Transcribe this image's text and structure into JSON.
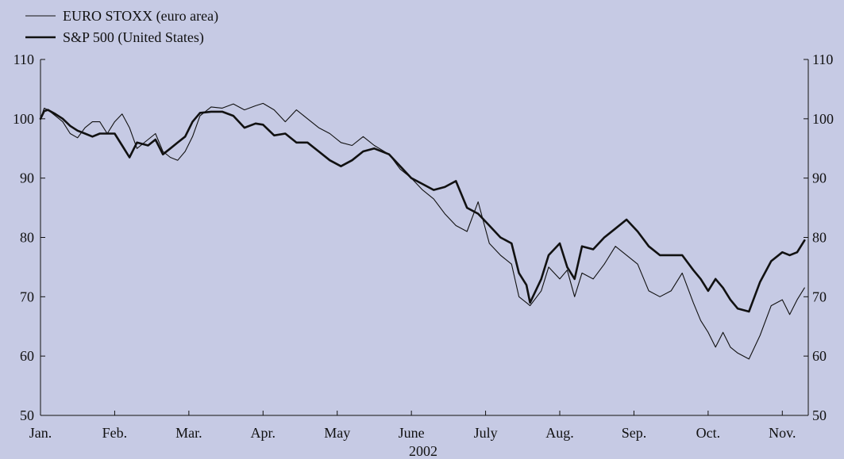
{
  "chart_data": {
    "type": "line",
    "title": "",
    "xlabel": "2002",
    "ylabel": "",
    "ylim": [
      50,
      110
    ],
    "yticks": [
      50,
      60,
      70,
      80,
      90,
      100,
      110
    ],
    "xlim": [
      0,
      10.35
    ],
    "x_ticks": [
      {
        "pos": 0,
        "label": "Jan."
      },
      {
        "pos": 1,
        "label": "Feb."
      },
      {
        "pos": 2,
        "label": "Mar."
      },
      {
        "pos": 3,
        "label": "Apr."
      },
      {
        "pos": 4,
        "label": "May"
      },
      {
        "pos": 5,
        "label": "June"
      },
      {
        "pos": 6,
        "label": "July"
      },
      {
        "pos": 7,
        "label": "Aug."
      },
      {
        "pos": 8,
        "label": "Sep."
      },
      {
        "pos": 9,
        "label": "Oct."
      },
      {
        "pos": 10,
        "label": "Nov."
      }
    ],
    "grid": false,
    "legend_position": "top-left",
    "background_color": "#c6cae4",
    "series": [
      {
        "name": "EURO STOXX (euro area)",
        "color": "#111111",
        "style": "thin",
        "x": [
          0,
          0.05,
          0.1,
          0.2,
          0.3,
          0.4,
          0.5,
          0.6,
          0.7,
          0.8,
          0.9,
          1.0,
          1.1,
          1.2,
          1.3,
          1.45,
          1.55,
          1.65,
          1.75,
          1.85,
          1.95,
          2.05,
          2.15,
          2.3,
          2.45,
          2.6,
          2.75,
          2.9,
          3.0,
          3.15,
          3.3,
          3.45,
          3.6,
          3.75,
          3.9,
          4.05,
          4.2,
          4.35,
          4.5,
          4.7,
          4.85,
          5.0,
          5.15,
          5.3,
          5.45,
          5.6,
          5.75,
          5.9,
          6.05,
          6.2,
          6.35,
          6.45,
          6.55,
          6.6,
          6.75,
          6.85,
          7.0,
          7.1,
          7.2,
          7.3,
          7.45,
          7.6,
          7.75,
          7.9,
          8.05,
          8.2,
          8.35,
          8.5,
          8.65,
          8.8,
          8.9,
          9.0,
          9.1,
          9.2,
          9.3,
          9.4,
          9.55,
          9.7,
          9.85,
          10.0,
          10.1,
          10.2,
          10.3
        ],
        "y": [
          100,
          101.8,
          101.5,
          100.5,
          99.5,
          97.5,
          96.8,
          98.5,
          99.5,
          99.5,
          97.5,
          99.5,
          100.8,
          98.5,
          95,
          96.5,
          97.5,
          94.5,
          93.5,
          93,
          94.5,
          97,
          100.5,
          102,
          101.8,
          102.5,
          101.5,
          102.2,
          102.6,
          101.5,
          99.5,
          101.5,
          100,
          98.5,
          97.5,
          96,
          95.5,
          97,
          95.5,
          94,
          91.5,
          90,
          88,
          86.5,
          84,
          82,
          81,
          86,
          79,
          77,
          75.5,
          70,
          69,
          68.5,
          71,
          75,
          73,
          74.5,
          70,
          74,
          73,
          75.5,
          78.5,
          77,
          75.5,
          71,
          70,
          71,
          74,
          69,
          66,
          64,
          61.5,
          64,
          61.5,
          60.5,
          59.5,
          63.5,
          68.5,
          69.5,
          67,
          69.5,
          71.5
        ]
      },
      {
        "name": "S&P 500 (United States)",
        "color": "#111111",
        "style": "thick",
        "x": [
          0,
          0.05,
          0.1,
          0.2,
          0.3,
          0.4,
          0.5,
          0.6,
          0.7,
          0.8,
          0.9,
          1.0,
          1.1,
          1.2,
          1.3,
          1.45,
          1.55,
          1.65,
          1.75,
          1.85,
          1.95,
          2.05,
          2.15,
          2.3,
          2.45,
          2.6,
          2.75,
          2.9,
          3.0,
          3.15,
          3.3,
          3.45,
          3.6,
          3.75,
          3.9,
          4.05,
          4.2,
          4.35,
          4.5,
          4.7,
          4.85,
          5.0,
          5.15,
          5.3,
          5.45,
          5.6,
          5.75,
          5.9,
          6.05,
          6.2,
          6.35,
          6.45,
          6.55,
          6.6,
          6.75,
          6.85,
          7.0,
          7.1,
          7.2,
          7.3,
          7.45,
          7.6,
          7.75,
          7.9,
          8.05,
          8.2,
          8.35,
          8.5,
          8.65,
          8.8,
          8.9,
          9.0,
          9.1,
          9.2,
          9.3,
          9.4,
          9.55,
          9.7,
          9.85,
          10.0,
          10.1,
          10.2,
          10.3
        ],
        "y": [
          100,
          101.3,
          101.5,
          100.8,
          100,
          98.8,
          98,
          97.5,
          97,
          97.5,
          97.5,
          97.5,
          95.5,
          93.5,
          96,
          95.5,
          96.5,
          94,
          95,
          96,
          97,
          99.5,
          101,
          101.2,
          101.2,
          100.5,
          98.5,
          99.2,
          99,
          97.2,
          97.5,
          96,
          96,
          94.5,
          93,
          92,
          93,
          94.5,
          95,
          94,
          92,
          90,
          89,
          88,
          88.5,
          89.5,
          85,
          84,
          82,
          80,
          79,
          74,
          72,
          69,
          73,
          77,
          79,
          75,
          73,
          78.5,
          78,
          80,
          81.5,
          83,
          81,
          78.5,
          77,
          77,
          77,
          74.5,
          73,
          71,
          73,
          71.5,
          69.5,
          68,
          67.5,
          72.5,
          76,
          77.5,
          77,
          77.5,
          79.5
        ]
      }
    ]
  }
}
